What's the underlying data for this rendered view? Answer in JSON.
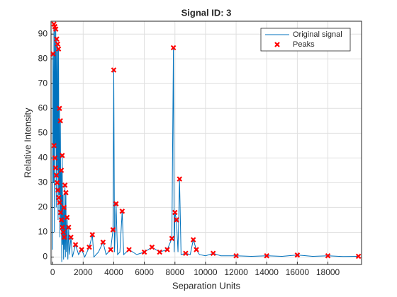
{
  "chart_data": {
    "type": "line",
    "title": "Signal ID: 3",
    "xlabel": "Separation Units",
    "ylabel": "Relative Intensity",
    "xlim": [
      -100,
      20200
    ],
    "ylim": [
      -3,
      95.2
    ],
    "xticks": [
      0,
      2000,
      4000,
      6000,
      8000,
      10000,
      12000,
      14000,
      16000,
      18000
    ],
    "yticks": [
      0,
      10,
      20,
      30,
      40,
      50,
      60,
      70,
      80,
      90
    ],
    "grid": true,
    "legend": "northeast",
    "series": [
      {
        "name": "Original signal",
        "color": "#0072bd",
        "style": "line",
        "x": [
          0,
          30,
          60,
          90,
          120,
          150,
          180,
          210,
          240,
          270,
          300,
          330,
          360,
          390,
          420,
          450,
          480,
          510,
          540,
          570,
          600,
          630,
          660,
          690,
          720,
          750,
          780,
          810,
          840,
          870,
          900,
          950,
          1000,
          1050,
          1100,
          1200,
          1300,
          1500,
          1700,
          1900,
          2100,
          2400,
          2600,
          2700,
          3000,
          3300,
          3500,
          3800,
          3950,
          4000,
          4050,
          4150,
          4250,
          4400,
          4550,
          4650,
          5000,
          5500,
          6000,
          6500,
          7000,
          7500,
          7800,
          7900,
          7950,
          8000,
          8100,
          8200,
          8300,
          8400,
          8700,
          9000,
          9200,
          9400,
          9600,
          10000,
          10500,
          11000,
          12000,
          13000,
          14000,
          15000,
          16000,
          17000,
          18000,
          19000,
          20000
        ],
        "values": [
          3,
          82,
          30,
          94,
          10,
          93,
          45,
          92,
          20,
          88,
          35,
          86,
          15,
          84,
          25,
          60,
          8,
          55,
          12,
          35,
          -2,
          41,
          5,
          25,
          -1,
          20,
          3,
          29,
          0,
          26,
          2,
          16,
          -1,
          12,
          1,
          8,
          0,
          5,
          1,
          3,
          0,
          4,
          9,
          0,
          2,
          6,
          1,
          3,
          11,
          75.5,
          2,
          21.5,
          1,
          2,
          18.5,
          1,
          3,
          1,
          2,
          4,
          2,
          3,
          7.5,
          84.5,
          2,
          18,
          15,
          2,
          31.5,
          1,
          1.5,
          1,
          7,
          3,
          1,
          0.5,
          1.5,
          0.5,
          0.5,
          0.3,
          0.5,
          0.3,
          0.8,
          0.3,
          0.5,
          0.2,
          0.3
        ]
      },
      {
        "name": "Peaks",
        "color": "#ff0000",
        "style": "marker",
        "x": [
          30,
          90,
          150,
          210,
          270,
          330,
          390,
          450,
          510,
          570,
          630,
          750,
          810,
          870,
          950,
          1050,
          1200,
          1500,
          1900,
          2400,
          2600,
          3300,
          3800,
          3950,
          4000,
          4150,
          4550,
          5000,
          6000,
          6500,
          7000,
          7500,
          7800,
          7900,
          8000,
          8100,
          8300,
          8700,
          9200,
          9400,
          10500,
          12000,
          14000,
          16000,
          18000,
          20000,
          100,
          160,
          200,
          250,
          300,
          350,
          400,
          460,
          520,
          580,
          640,
          700,
          760
        ],
        "values": [
          82,
          94,
          93,
          92,
          88,
          86,
          84,
          60,
          55,
          35,
          41,
          20,
          29,
          26,
          16,
          12,
          8,
          5,
          3,
          4,
          9,
          6,
          3,
          11,
          75.5,
          21.5,
          18.5,
          3,
          2,
          4,
          2,
          3,
          7.5,
          84.5,
          18,
          15,
          31.5,
          1.5,
          7,
          3,
          1.5,
          0.5,
          0.5,
          0.8,
          0.5,
          0.3,
          45,
          40,
          36,
          33,
          30,
          27,
          24,
          22,
          18,
          15,
          12,
          10,
          8
        ]
      }
    ]
  }
}
